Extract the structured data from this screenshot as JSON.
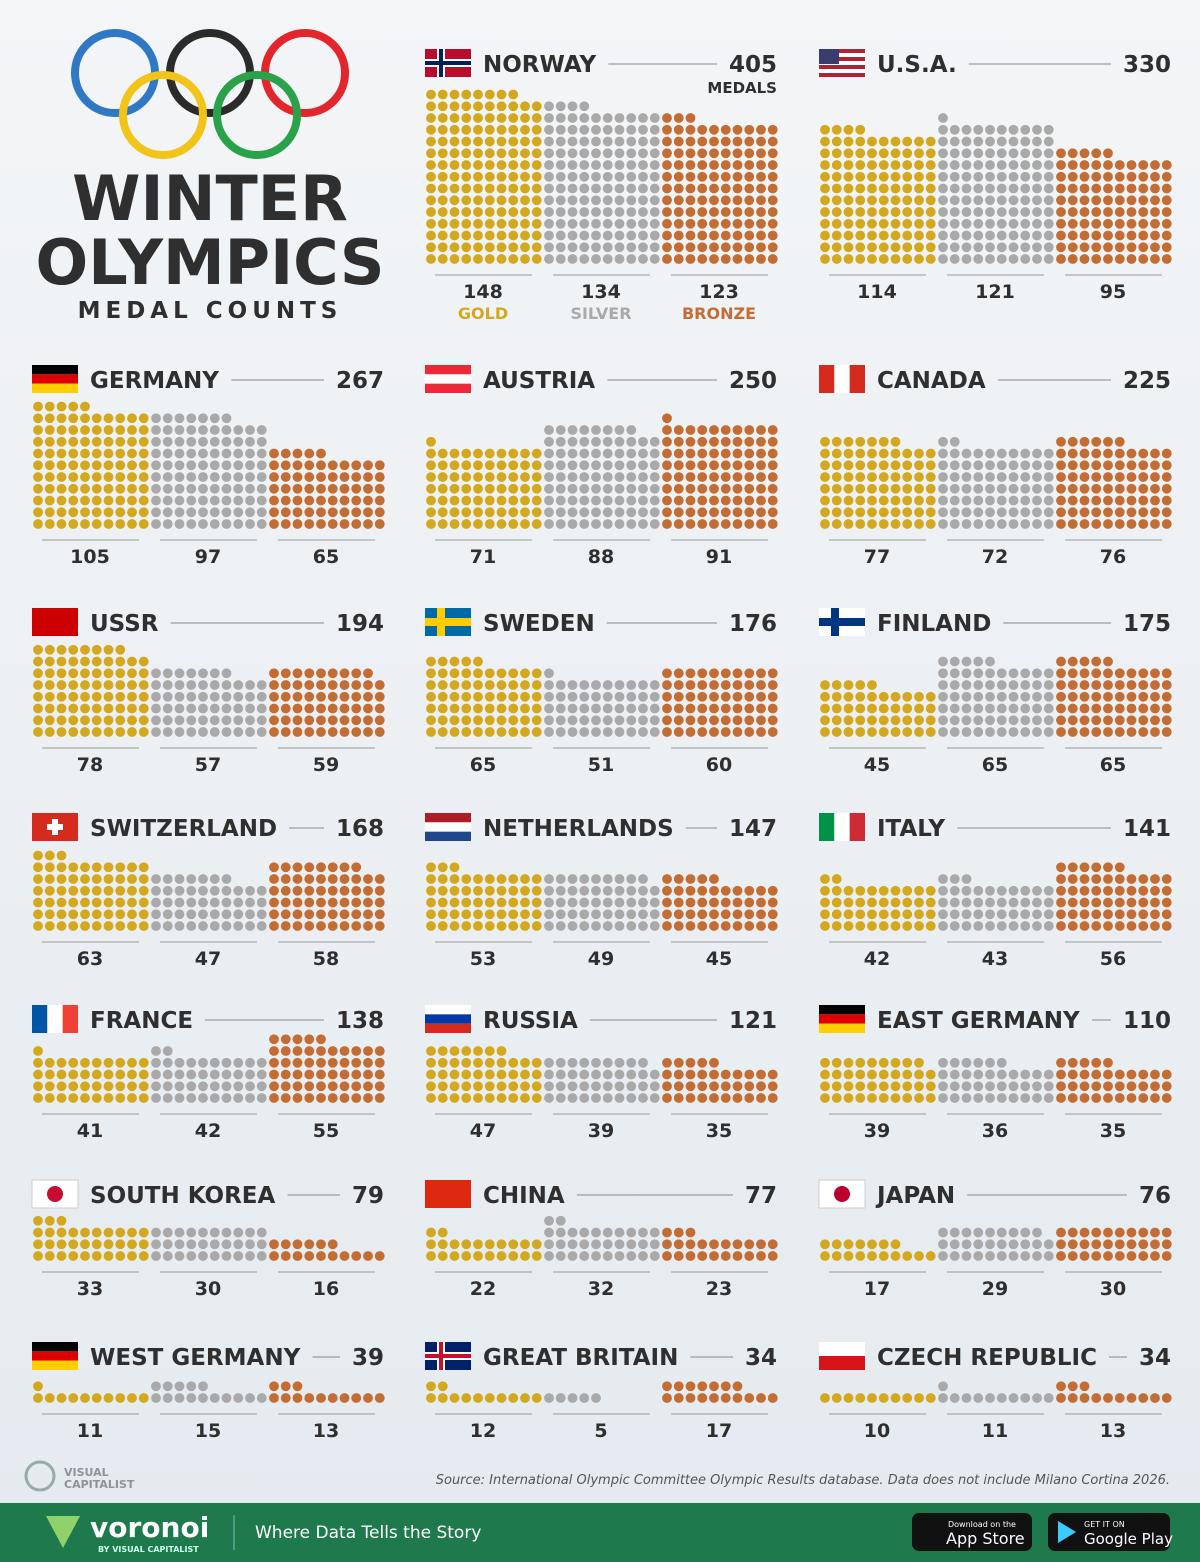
{
  "header": {
    "title_lines": [
      "WINTER",
      "OLYMPICS"
    ],
    "subtitle": "MEDAL COUNTS"
  },
  "medal_colors": [
    "#d4a81e",
    "#a9a9a9",
    "#c36d34"
  ],
  "chart_data": [
    {
      "type": "dot",
      "title": "NORWAY",
      "total": 405,
      "total_label": "MEDALS",
      "categories": [
        "GOLD",
        "SILVER",
        "BRONZE"
      ],
      "values": [
        148,
        134,
        123
      ]
    },
    {
      "type": "dot",
      "title": "U.S.A.",
      "total": 330,
      "values": [
        114,
        121,
        95
      ]
    },
    {
      "type": "dot",
      "title": "GERMANY",
      "total": 267,
      "values": [
        105,
        97,
        65
      ]
    },
    {
      "type": "dot",
      "title": "AUSTRIA",
      "total": 250,
      "values": [
        71,
        88,
        91
      ]
    },
    {
      "type": "dot",
      "title": "CANADA",
      "total": 225,
      "values": [
        77,
        72,
        76
      ]
    },
    {
      "type": "dot",
      "title": "USSR",
      "total": 194,
      "values": [
        78,
        57,
        59
      ]
    },
    {
      "type": "dot",
      "title": "SWEDEN",
      "total": 176,
      "values": [
        65,
        51,
        60
      ]
    },
    {
      "type": "dot",
      "title": "FINLAND",
      "total": 175,
      "values": [
        45,
        65,
        65
      ]
    },
    {
      "type": "dot",
      "title": "SWITZERLAND",
      "total": 168,
      "values": [
        63,
        47,
        58
      ]
    },
    {
      "type": "dot",
      "title": "NETHERLANDS",
      "total": 147,
      "values": [
        53,
        49,
        45
      ]
    },
    {
      "type": "dot",
      "title": "ITALY",
      "total": 141,
      "values": [
        42,
        43,
        56
      ]
    },
    {
      "type": "dot",
      "title": "FRANCE",
      "total": 138,
      "values": [
        41,
        42,
        55
      ]
    },
    {
      "type": "dot",
      "title": "RUSSIA",
      "total": 121,
      "values": [
        47,
        39,
        35
      ]
    },
    {
      "type": "dot",
      "title": "EAST GERMANY",
      "total": 110,
      "values": [
        39,
        36,
        35
      ]
    },
    {
      "type": "dot",
      "title": "SOUTH KOREA",
      "total": 79,
      "values": [
        33,
        30,
        16
      ]
    },
    {
      "type": "dot",
      "title": "CHINA",
      "total": 77,
      "values": [
        22,
        32,
        23
      ]
    },
    {
      "type": "dot",
      "title": "JAPAN",
      "total": 76,
      "values": [
        17,
        29,
        30
      ]
    },
    {
      "type": "dot",
      "title": "WEST GERMANY",
      "total": 39,
      "values": [
        11,
        15,
        13
      ]
    },
    {
      "type": "dot",
      "title": "GREAT BRITAIN",
      "total": 34,
      "values": [
        12,
        5,
        17
      ]
    },
    {
      "type": "dot",
      "title": "CZECH REPUBLIC",
      "total": 34,
      "values": [
        10,
        11,
        13
      ]
    }
  ],
  "source": "Source: International Olympic Committee Olympic Results database. Data does not include Milano Cortina 2026.",
  "footer": {
    "vc_logo": [
      "VISUAL",
      "CAPITALIST"
    ],
    "brand": "voronoi",
    "brand_sub": "BY VISUAL CAPITALIST",
    "tagline": "Where Data Tells the Story",
    "app_store": [
      "Download on the",
      "App Store"
    ],
    "google_play": [
      "GET IT ON",
      "Google Play"
    ]
  }
}
